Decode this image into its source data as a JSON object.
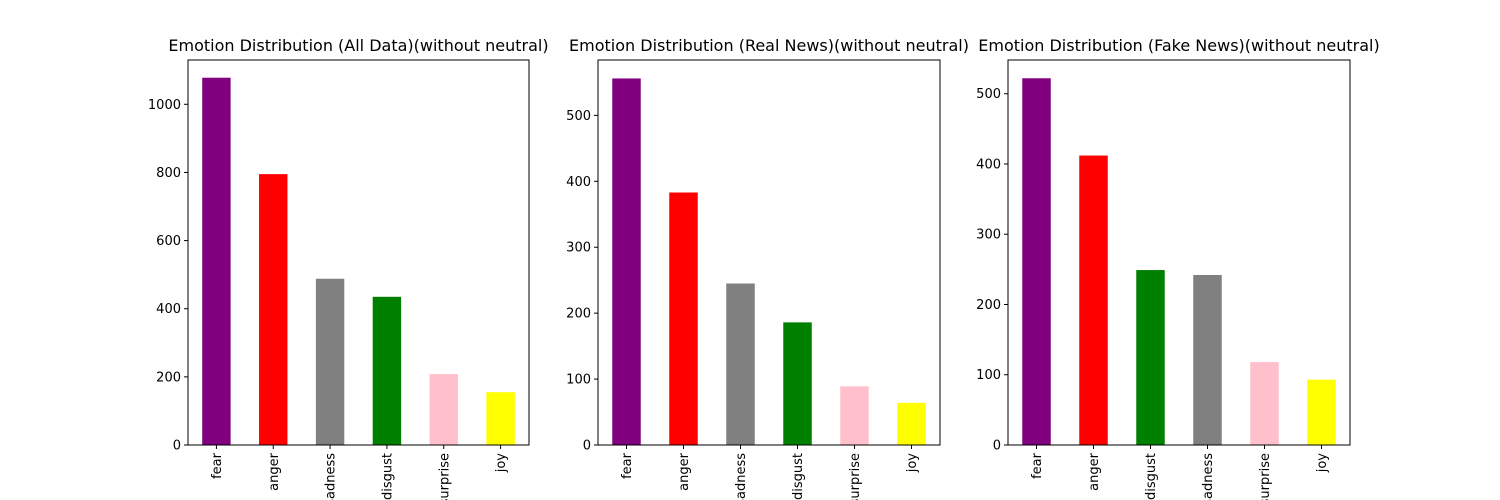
{
  "chart_data": [
    {
      "type": "bar",
      "title": "Emotion Distribution (All Data)(without neutral)",
      "xlabel": "",
      "ylabel": "",
      "categories": [
        "fear",
        "anger",
        "sadness",
        "disgust",
        "surprise",
        "joy"
      ],
      "values": [
        1078,
        795,
        488,
        435,
        208,
        155
      ],
      "colors": [
        "#800080",
        "#ff0000",
        "#808080",
        "#008000",
        "#ffc0cb",
        "#ffff00"
      ],
      "ylim": [
        0,
        1130
      ],
      "yticks": [
        0,
        200,
        400,
        600,
        800,
        1000
      ],
      "grid": false
    },
    {
      "type": "bar",
      "title": "Emotion Distribution (Real News)(without neutral)",
      "xlabel": "",
      "ylabel": "",
      "categories": [
        "fear",
        "anger",
        "sadness",
        "disgust",
        "surprise",
        "joy"
      ],
      "values": [
        556,
        383,
        245,
        186,
        89,
        64
      ],
      "colors": [
        "#800080",
        "#ff0000",
        "#808080",
        "#008000",
        "#ffc0cb",
        "#ffff00"
      ],
      "ylim": [
        0,
        584
      ],
      "yticks": [
        0,
        100,
        200,
        300,
        400,
        500
      ],
      "grid": false
    },
    {
      "type": "bar",
      "title": "Emotion Distribution (Fake News)(without neutral)",
      "xlabel": "",
      "ylabel": "",
      "categories": [
        "fear",
        "anger",
        "disgust",
        "sadness",
        "surprise",
        "joy"
      ],
      "values": [
        522,
        412,
        249,
        242,
        118,
        93
      ],
      "colors": [
        "#800080",
        "#ff0000",
        "#008000",
        "#808080",
        "#ffc0cb",
        "#ffff00"
      ],
      "ylim": [
        0,
        548
      ],
      "yticks": [
        0,
        100,
        200,
        300,
        400,
        500
      ],
      "grid": false
    }
  ]
}
